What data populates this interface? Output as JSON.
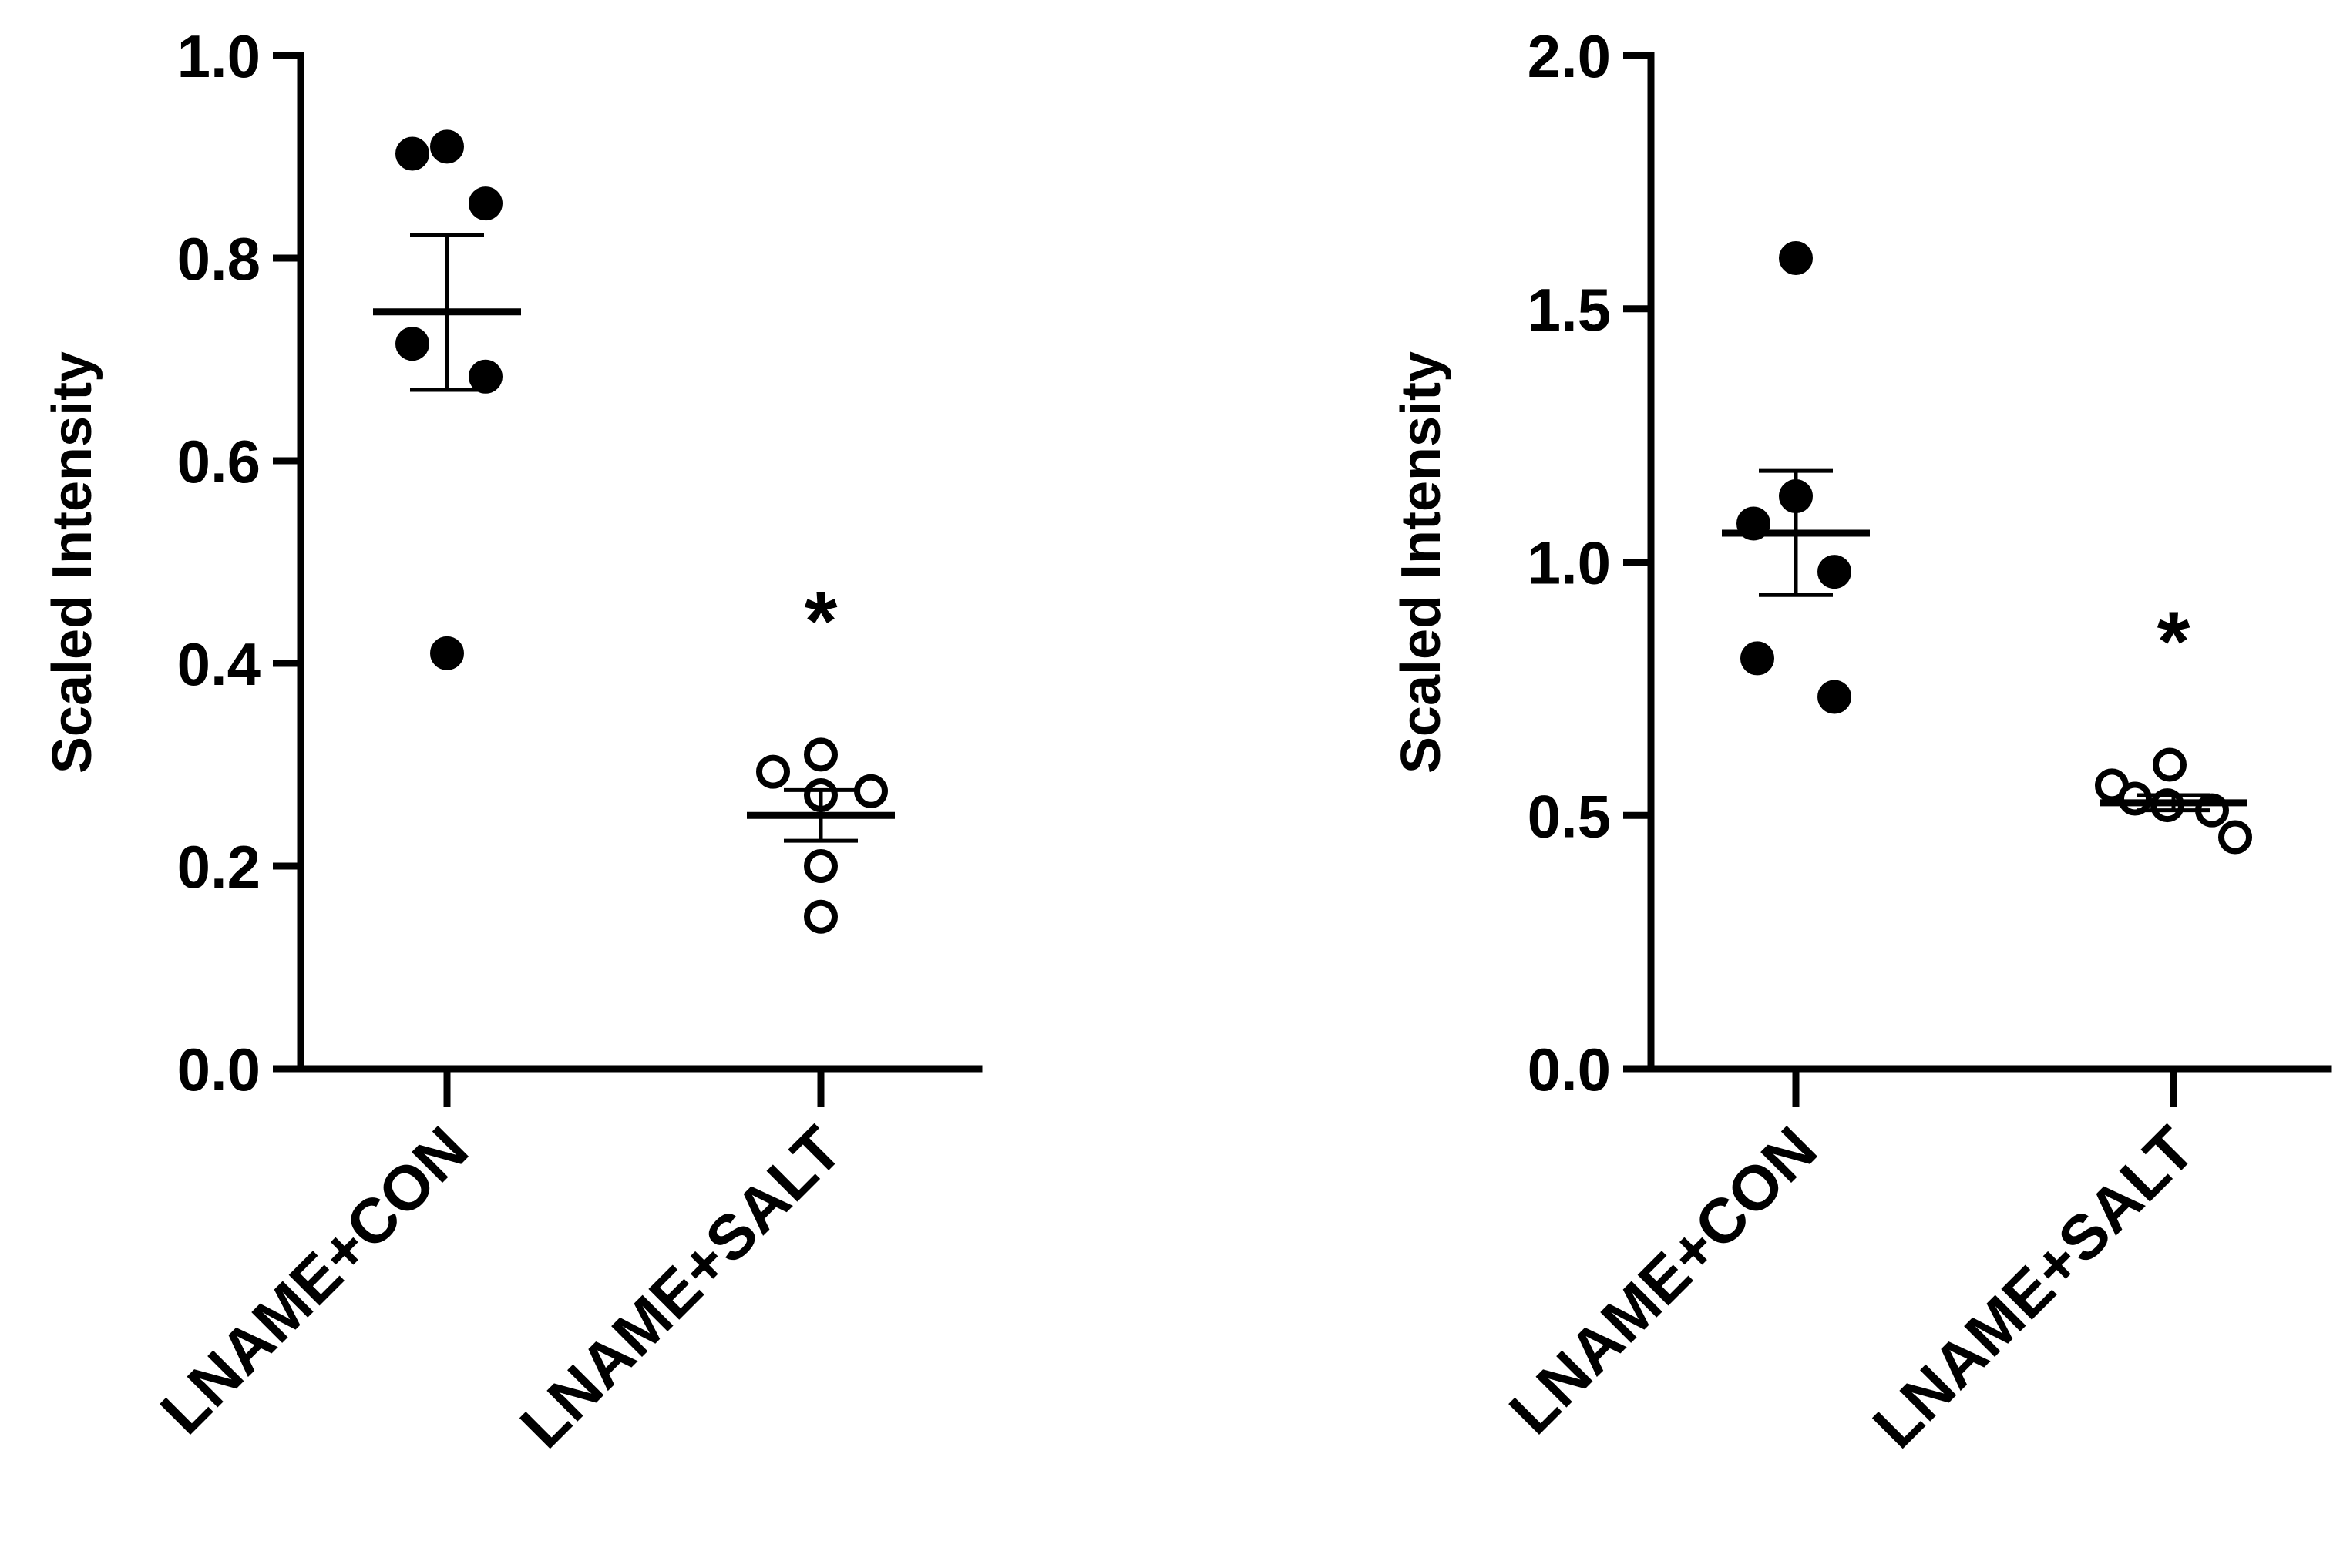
{
  "chart_data": [
    {
      "type": "scatter",
      "title": "",
      "ylabel": "Scaled Intensity",
      "xlabel": "",
      "ylim": [
        0,
        1.0
      ],
      "yticks": [
        "0.0",
        "0.2",
        "0.4",
        "0.6",
        "0.8",
        "1.0"
      ],
      "categories": [
        "LNAME+CON",
        "LNAME+SALT"
      ],
      "grid": false,
      "series": [
        {
          "category": "LNAME+CON",
          "marker": "filled-circle",
          "points": [
            0.9,
            0.91,
            0.86,
            0.72,
            0.68,
            0.41
          ],
          "mean": 0.747,
          "sem_low": 0.67,
          "sem_high": 0.823
        },
        {
          "category": "LNAME+SALT",
          "marker": "open-circle",
          "points": [
            0.31,
            0.29,
            0.28,
            0.27,
            0.2,
            0.15
          ],
          "mean": 0.25,
          "sem_low": 0.225,
          "sem_high": 0.275
        }
      ],
      "annotations": [
        {
          "text": "*",
          "category": "LNAME+SALT",
          "y": 0.46
        }
      ],
      "colors": {
        "marker": "#000000",
        "open_fill": "#ffffff"
      }
    },
    {
      "type": "scatter",
      "title": "",
      "ylabel": "Scaled Intensity",
      "xlabel": "",
      "ylim": [
        0,
        2.0
      ],
      "yticks": [
        "0.0",
        "0.5",
        "1.0",
        "1.5",
        "2.0"
      ],
      "categories": [
        "LNAME+CON",
        "LNAME+SALT"
      ],
      "grid": false,
      "series": [
        {
          "category": "LNAME+CON",
          "marker": "filled-circle",
          "points": [
            1.6,
            1.13,
            1.07,
            0.99,
            0.81,
            0.74
          ],
          "mean": 1.057,
          "sem_low": 0.935,
          "sem_high": 1.18
        },
        {
          "category": "LNAME+SALT",
          "marker": "open-circle",
          "points": [
            0.6,
            0.55,
            0.53,
            0.52,
            0.51,
            0.46
          ],
          "mean": 0.525,
          "sem_low": 0.51,
          "sem_high": 0.54
        }
      ],
      "annotations": [
        {
          "text": "*",
          "category": "LNAME+SALT",
          "y": 0.88
        }
      ],
      "colors": {
        "marker": "#000000",
        "open_fill": "#ffffff"
      }
    }
  ]
}
